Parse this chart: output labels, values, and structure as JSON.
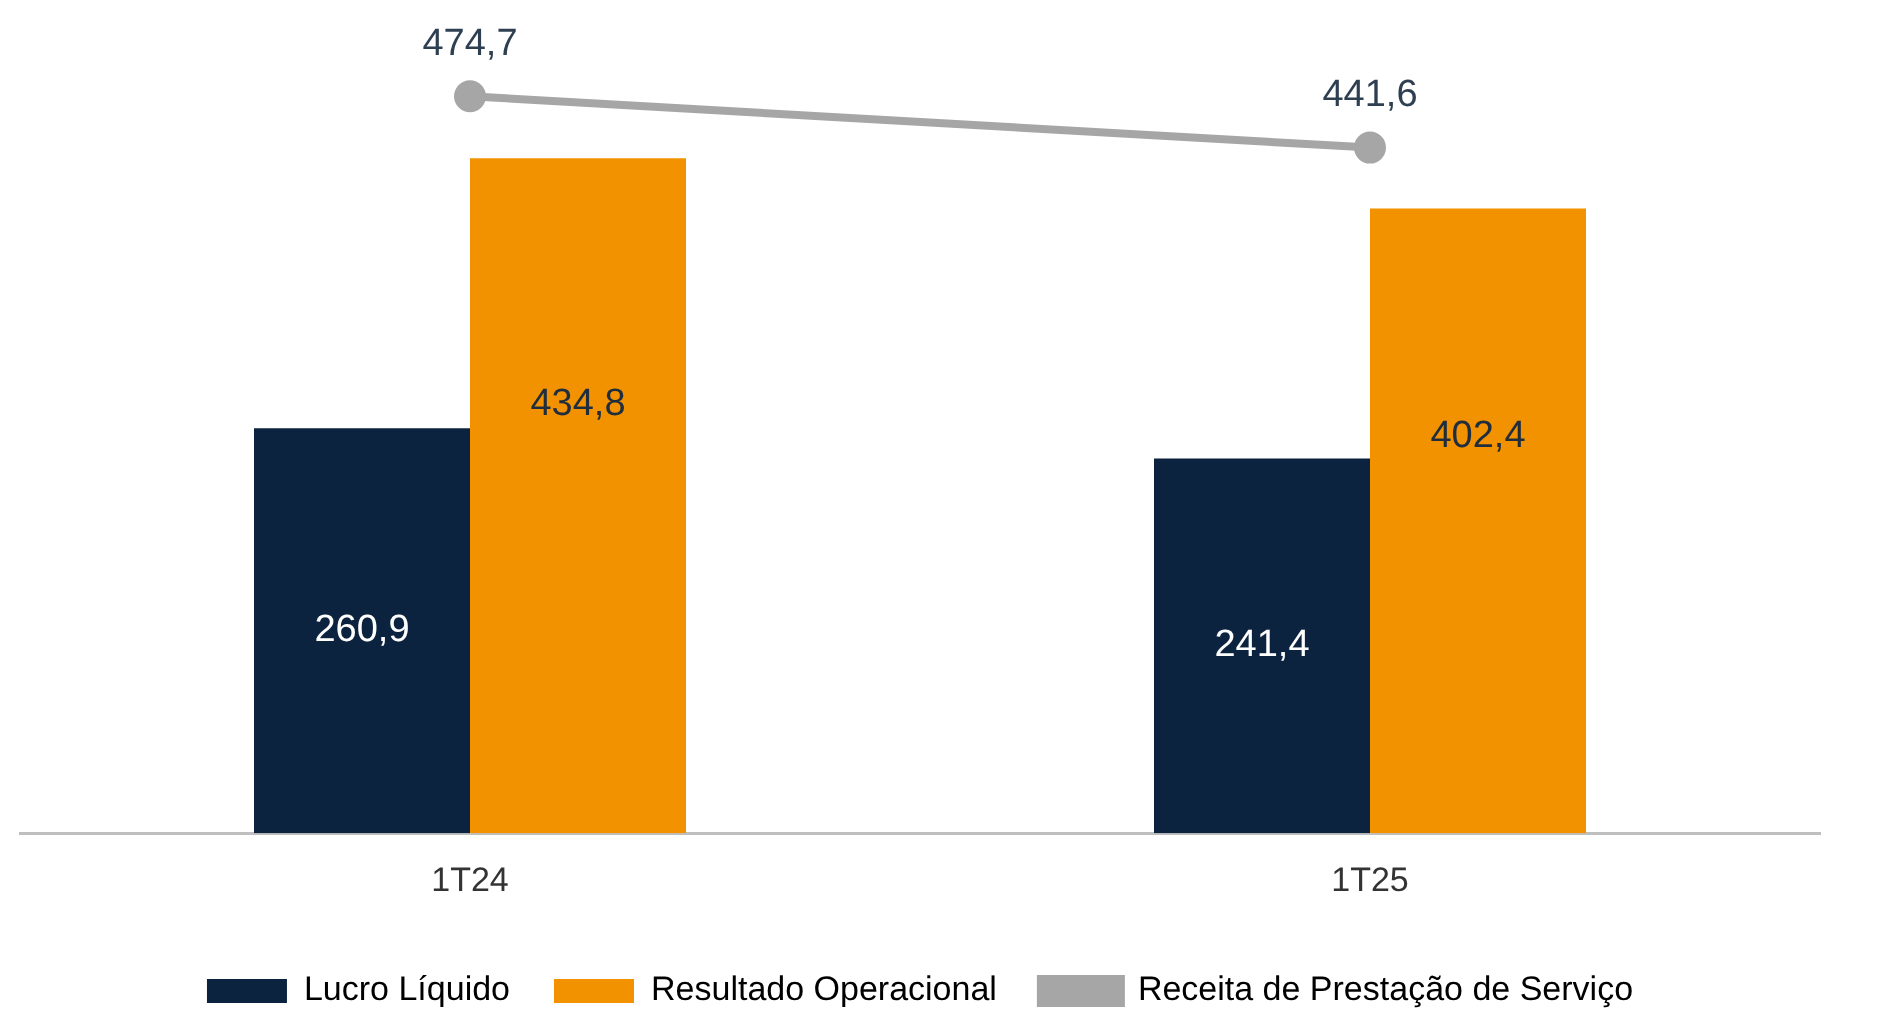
{
  "chart_data": {
    "type": "bar",
    "categories": [
      "1T24",
      "1T25"
    ],
    "series": [
      {
        "name": "Lucro Líquido",
        "color": "#0c2340",
        "values": [
          260.9,
          241.4
        ],
        "value_labels": [
          "260,9",
          "241,4"
        ]
      },
      {
        "name": "Resultado Operacional",
        "color": "#f39200",
        "values": [
          434.8,
          402.4
        ],
        "value_labels": [
          "434,8",
          "402,4"
        ]
      },
      {
        "name": "Receita de Prestação de Serviço",
        "type": "line",
        "color": "#a6a6a6",
        "values": [
          474.7,
          441.6
        ],
        "value_labels": [
          "474,7",
          "441,6"
        ]
      }
    ],
    "grid": false,
    "legend": "bottom",
    "marker": "circle",
    "line_style": "solid"
  }
}
